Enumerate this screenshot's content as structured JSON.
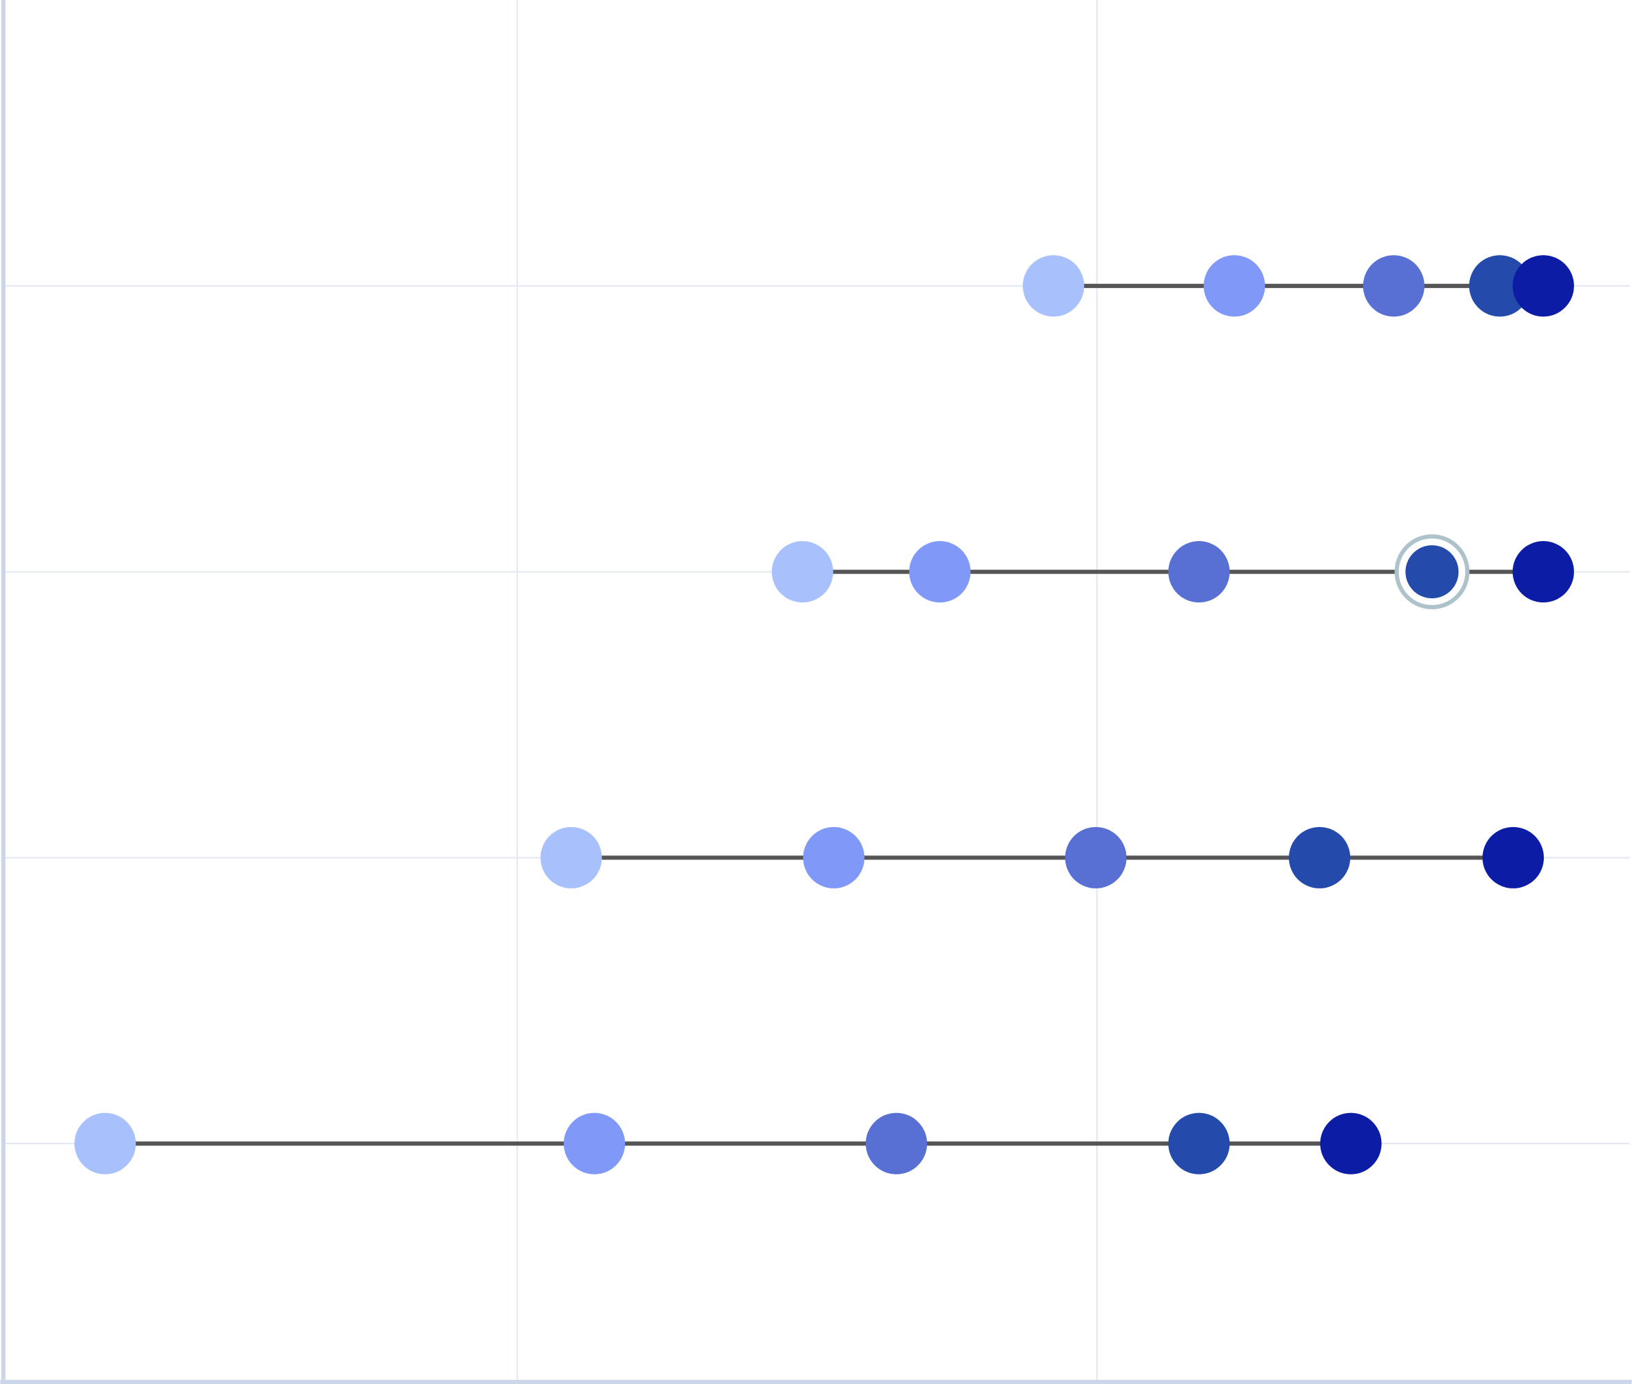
{
  "chart_data": {
    "type": "dot-plot",
    "title": "",
    "xlabel": "",
    "ylabel": "",
    "xlim": [
      0.117,
      2.919
    ],
    "x_grid_ticks": [
      1,
      2
    ],
    "rows": [
      1,
      2,
      3,
      4
    ],
    "ylim": [
      0,
      4.83
    ],
    "grid": true,
    "series_colors": [
      "#a8c0fc",
      "#8098f8",
      "#5870d4",
      "#244aac",
      "#0c1ca4"
    ],
    "line_color": "#555555",
    "grid_color": "#e6e9f4",
    "axis_color": "#cbd6ea",
    "highlight_color": "#aec2cc",
    "data": [
      {
        "row": 1,
        "values": [
          1.925,
          2.237,
          2.512,
          2.695,
          2.77
        ]
      },
      {
        "row": 2,
        "values": [
          1.492,
          1.729,
          2.176,
          2.578,
          2.77
        ],
        "highlight_index": 3
      },
      {
        "row": 3,
        "values": [
          1.093,
          1.546,
          1.998,
          2.384,
          2.718
        ]
      },
      {
        "row": 4,
        "values": [
          0.289,
          1.133,
          1.654,
          2.176,
          2.438
        ]
      }
    ]
  }
}
